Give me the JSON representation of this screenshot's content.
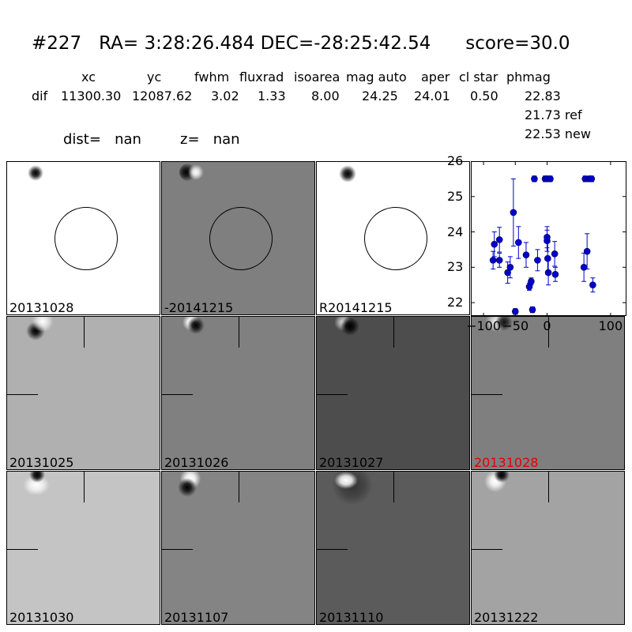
{
  "header": {
    "title": "#227   RA= 3:28:26.484 DEC=-28:25:42.54      score=30.0",
    "columns": [
      "xc",
      "yc",
      "fwhm",
      "fluxrad",
      "isoarea",
      "mag auto",
      "aper",
      "cl star",
      "phmag"
    ],
    "row_label": "dif",
    "row_values": [
      "11300.30",
      "12087.62",
      "3.02",
      "1.33",
      "8.00",
      "24.25",
      "24.01",
      "0.50",
      "22.83"
    ],
    "ref_phmag": "21.73 ref",
    "new_phmag": "22.53 new",
    "dist": "dist=   nan",
    "z": "z=   nan"
  },
  "panels": {
    "top": [
      {
        "label": "20131028",
        "bg": "#ffffff"
      },
      {
        "label": "-20141215",
        "bg": "#7f7f7f"
      },
      {
        "label": "R20141215",
        "bg": "#ffffff"
      }
    ],
    "row2": [
      {
        "label": "20131025",
        "bg": "#b0b0b0"
      },
      {
        "label": "20131026",
        "bg": "#808080"
      },
      {
        "label": "20131027",
        "bg": "#4d4d4d"
      },
      {
        "label": "20131028",
        "bg": "#7f7f7f",
        "highlight": "#e60000"
      }
    ],
    "row3": [
      {
        "label": "20131030",
        "bg": "#c4c4c4"
      },
      {
        "label": "20131107",
        "bg": "#848484"
      },
      {
        "label": "20131110",
        "bg": "#5b5b5b"
      },
      {
        "label": "20131222",
        "bg": "#a3a3a3"
      }
    ]
  },
  "chart_data": {
    "type": "scatter",
    "marker_color": "#0000cc",
    "xlim": [
      -120,
      125
    ],
    "ylim": [
      26,
      21.6
    ],
    "y_inverted": true,
    "xticks": [
      -100,
      -50,
      0,
      100
    ],
    "xtick_labels": [
      "−100",
      "−50",
      "0",
      "100"
    ],
    "yticks": [
      22,
      23,
      24,
      25,
      26
    ],
    "points": [
      {
        "x": -85,
        "y": 23.2,
        "err": 0.25
      },
      {
        "x": -83,
        "y": 23.65,
        "err": 0.35
      },
      {
        "x": -75,
        "y": 23.2,
        "err": 0.2
      },
      {
        "x": -75,
        "y": 23.78,
        "err": 0.35
      },
      {
        "x": -62,
        "y": 22.85,
        "err": 0.3
      },
      {
        "x": -58,
        "y": 23.0,
        "err": 0.3
      },
      {
        "x": -53,
        "y": 24.55,
        "err": 0.95
      },
      {
        "x": -50,
        "y": 21.75,
        "err": 0.08
      },
      {
        "x": -45,
        "y": 23.7,
        "err": 0.45
      },
      {
        "x": -33,
        "y": 23.35,
        "err": 0.35
      },
      {
        "x": -28,
        "y": 22.45,
        "err": 0.1
      },
      {
        "x": -25,
        "y": 22.6,
        "err": 0.1
      },
      {
        "x": -23,
        "y": 21.8,
        "err": 0.08
      },
      {
        "x": -20,
        "y": 25.5,
        "err": 0.08
      },
      {
        "x": -15,
        "y": 23.2,
        "err": 0.3
      },
      {
        "x": -3,
        "y": 25.5,
        "err": 0.08
      },
      {
        "x": 0,
        "y": 25.5,
        "err": 0.08
      },
      {
        "x": 0,
        "y": 23.75,
        "err": 0.3
      },
      {
        "x": 0,
        "y": 23.85,
        "err": 0.3
      },
      {
        "x": 1,
        "y": 23.25,
        "err": 0.45
      },
      {
        "x": 2,
        "y": 22.85,
        "err": 0.35
      },
      {
        "x": 5,
        "y": 25.5,
        "err": 0.08
      },
      {
        "x": 12,
        "y": 23.38,
        "err": 0.35
      },
      {
        "x": 13,
        "y": 22.8,
        "err": 0.2
      },
      {
        "x": 58,
        "y": 23.0,
        "err": 0.4
      },
      {
        "x": 60,
        "y": 25.5,
        "err": 0.08
      },
      {
        "x": 63,
        "y": 23.45,
        "err": 0.5
      },
      {
        "x": 67,
        "y": 25.5,
        "err": 0.08
      },
      {
        "x": 70,
        "y": 25.5,
        "err": 0.08
      },
      {
        "x": 72,
        "y": 22.5,
        "err": 0.2
      }
    ]
  }
}
